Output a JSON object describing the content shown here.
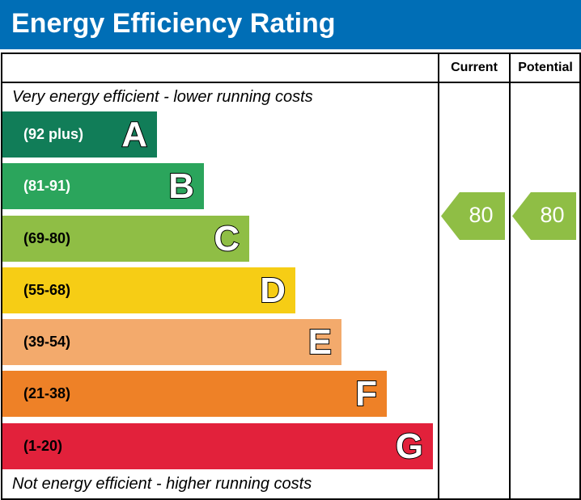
{
  "header": {
    "title": "Energy Efficiency Rating",
    "background": "#006eb6"
  },
  "columns": {
    "current": "Current",
    "potential": "Potential"
  },
  "notes": {
    "top": "Very energy efficient - lower running costs",
    "bottom": "Not energy efficient - higher running costs"
  },
  "chart_data": {
    "type": "bar",
    "bands": [
      {
        "letter": "A",
        "range": "(92 plus)",
        "color": "#117d58",
        "text_color": "#ffffff"
      },
      {
        "letter": "B",
        "range": "(81-91)",
        "color": "#2ba55c",
        "text_color": "#ffffff"
      },
      {
        "letter": "C",
        "range": "(69-80)",
        "color": "#8fbe45",
        "text_color": "#000000"
      },
      {
        "letter": "D",
        "range": "(55-68)",
        "color": "#f6cd15",
        "text_color": "#000000"
      },
      {
        "letter": "E",
        "range": "(39-54)",
        "color": "#f3aa6c",
        "text_color": "#000000"
      },
      {
        "letter": "F",
        "range": "(21-38)",
        "color": "#ee8127",
        "text_color": "#000000"
      },
      {
        "letter": "G",
        "range": "(1-20)",
        "color": "#e2213b",
        "text_color": "#000000"
      }
    ],
    "current": {
      "value": "80",
      "band": "C",
      "color": "#8fbe45"
    },
    "potential": {
      "value": "80",
      "band": "C",
      "color": "#8fbe45"
    }
  }
}
